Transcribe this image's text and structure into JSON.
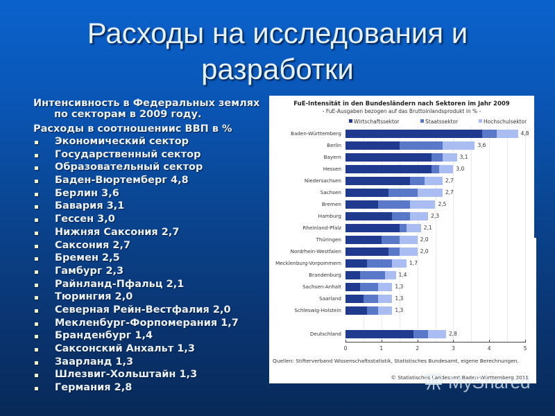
{
  "slide": {
    "title": "Расходы на исследования и разработки",
    "intro_line1": "Интенсивность в Федеральных землях",
    "intro_line2": "по секторам в 2009 году.",
    "lead": "Расходы в соотношениис ВВП в %",
    "bullets": [
      "Экономический сектор",
      "Государственный сектор",
      "Образовательный сектор",
      "Баден-Вюртемберг 4,8",
      "Берлин 3,6",
      "Бавария 3,1",
      "Гессен 3,0",
      "Нижняя Саксония 2,7",
      "Саксония 2,7",
      "Бремен 2,5",
      "Гамбург 2,3",
      "Райнланд-Пфальц 2,1",
      "Тюрингия 2,0",
      "Северная Рейн-Вестфалия 2,0",
      "Мекленбург-Форпомерания 1,7",
      "Бранденбург 1,4",
      "Саксонский Анхальт 1,3",
      "Заарланд 1,3",
      "Шлезвиг-Хольштайн 1,3",
      "Германия 2,8"
    ],
    "watermark": "MyShared"
  },
  "colors": {
    "wirtschaft": "#1f3a8f",
    "staat": "#5a78c8",
    "hochschule": "#a9bdf3"
  },
  "chart_data": {
    "type": "bar",
    "orientation": "horizontal",
    "stacked": true,
    "title": "FuE-Intensität in den Bundesländern nach Sektoren im Jahr 2009",
    "subtitle": "- FuE-Ausgaben bezogen auf das Bruttoinlandsprodukt in % -",
    "xlabel": "",
    "ylabel": "",
    "xlim": [
      0,
      5
    ],
    "xticks": [
      "0",
      "1",
      "2",
      "3",
      "4",
      "5"
    ],
    "grid": true,
    "legend_position": "top",
    "categories": [
      "Baden-Württemberg",
      "Berlin",
      "Bayern",
      "Hessen",
      "Niedersachsen",
      "Sachsen",
      "Bremen",
      "Hamburg",
      "Rheinland-Pfalz",
      "Thüringen",
      "Nordrhein-Westfalen",
      "Mecklenburg-Vorpommern",
      "Brandenburg",
      "Sachsen-Anhalt",
      "Saarland",
      "Schleswig-Holstein",
      "Deutschland"
    ],
    "series": [
      {
        "name": "Wirtschaftssektor",
        "values": [
          3.8,
          1.5,
          2.4,
          2.4,
          1.8,
          1.2,
          0.9,
          1.3,
          1.5,
          1.0,
          1.2,
          0.6,
          0.4,
          0.4,
          0.5,
          0.6,
          1.9
        ]
      },
      {
        "name": "Staatssektor",
        "values": [
          0.4,
          1.2,
          0.3,
          0.2,
          0.4,
          0.8,
          0.9,
          0.5,
          0.2,
          0.5,
          0.3,
          0.7,
          0.7,
          0.5,
          0.4,
          0.3,
          0.4
        ]
      },
      {
        "name": "Hochschulsektor",
        "values": [
          0.6,
          0.9,
          0.4,
          0.4,
          0.5,
          0.7,
          0.7,
          0.5,
          0.4,
          0.5,
          0.5,
          0.4,
          0.3,
          0.4,
          0.4,
          0.4,
          0.5
        ]
      }
    ],
    "totals": [
      4.8,
      3.6,
      3.1,
      3.0,
      2.7,
      2.7,
      2.5,
      2.3,
      2.1,
      2.0,
      2.0,
      1.7,
      1.4,
      1.3,
      1.3,
      1.3,
      2.8
    ],
    "total_labels": [
      "4,8",
      "3,6",
      "3,1",
      "3,0",
      "2,7",
      "2,7",
      "2,5",
      "2,3",
      "2,1",
      "2,0",
      "2,0",
      "1,7",
      "1,4",
      "1,3",
      "1,3",
      "1,3",
      "2,8"
    ],
    "source": "Quellen: Stifterverband Wissenschaftsstatistik, Statistisches Bundesamt, eigene Berechnungen.",
    "copyright": "© Statistisches Landesamt Baden-Württemberg 2011"
  }
}
